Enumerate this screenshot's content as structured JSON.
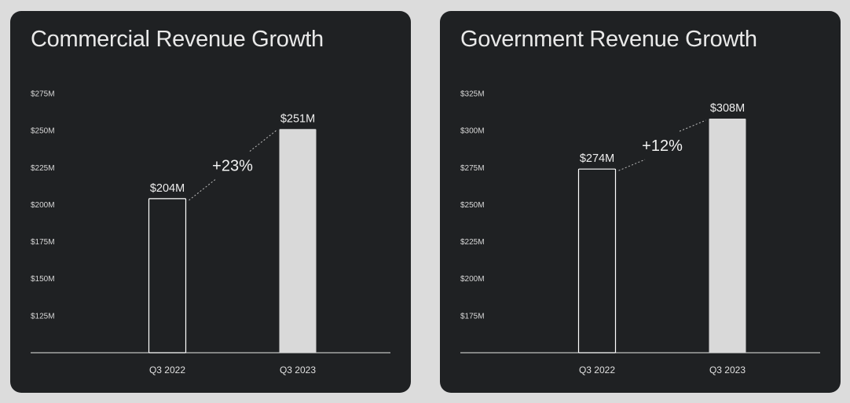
{
  "colors": {
    "page_background": "#dcdcdc",
    "card_background": "#1f2123",
    "text": "#e9e9e9",
    "bar_highlight_fill": "#d9d9d9",
    "bar_outline": "#ffffff"
  },
  "chart_data": [
    {
      "type": "bar",
      "title": "Commercial Revenue Growth",
      "categories": [
        "Q3 2022",
        "Q3 2023"
      ],
      "values": [
        204,
        251
      ],
      "value_labels": [
        "$204M",
        "$251M"
      ],
      "bar_styles": [
        "outline",
        "filled"
      ],
      "growth_label": "+23%",
      "yticks": [
        125,
        150,
        175,
        200,
        225,
        250,
        275
      ],
      "ytick_labels": [
        "$125M",
        "$150M",
        "$175M",
        "$200M",
        "$225M",
        "$250M",
        "$275M"
      ],
      "ylim": [
        100,
        275
      ],
      "grid": false,
      "legend": "none"
    },
    {
      "type": "bar",
      "title": "Government Revenue Growth",
      "categories": [
        "Q3 2022",
        "Q3 2023"
      ],
      "values": [
        274,
        308
      ],
      "value_labels": [
        "$274M",
        "$308M"
      ],
      "bar_styles": [
        "outline",
        "filled"
      ],
      "growth_label": "+12%",
      "yticks": [
        175,
        200,
        225,
        250,
        275,
        300,
        325
      ],
      "ytick_labels": [
        "$175M",
        "$200M",
        "$225M",
        "$250M",
        "$275M",
        "$300M",
        "$325M"
      ],
      "ylim": [
        150,
        325
      ],
      "grid": false,
      "legend": "none"
    }
  ]
}
